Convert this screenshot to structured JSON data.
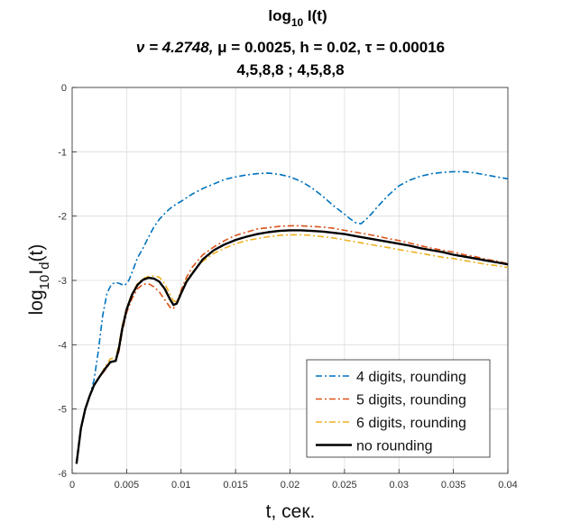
{
  "colors": {
    "s4": "#0072BD",
    "s5": "#D95319",
    "s6": "#EDB120",
    "s0": "#000000",
    "grid": "#dcdcdc",
    "axis": "#262626"
  },
  "chart_data": {
    "type": "line",
    "title_main": "log",
    "title_sub": "10",
    "title_arg": " I(t)",
    "subtitle_prefix": "ν = 4.2748, ",
    "subtitle_mu": "μ = 0.0025, h = 0.02, ",
    "subtitle_tau": "τ = 0.00016",
    "subtitle2": "4,5,8,8 ; 4,5,8,8",
    "xlabel": "t, сек.",
    "ylabel_main": "log",
    "ylabel_sub1": "10",
    "ylabel_mid": "I",
    "ylabel_sub2": "d",
    "ylabel_end": "(t)",
    "xlim": [
      0,
      0.04
    ],
    "ylim": [
      -6,
      0
    ],
    "grid": true,
    "legend_position": "bottom-right",
    "xticks": [
      0,
      0.005,
      0.01,
      0.015,
      0.02,
      0.025,
      0.03,
      0.035,
      0.04
    ],
    "xtick_labels": [
      "0",
      "0.005",
      "0.01",
      "0.015",
      "0.02",
      "0.025",
      "0.03",
      "0.035",
      "0.04"
    ],
    "yticks": [
      0,
      -1,
      -2,
      -3,
      -4,
      -5,
      -6
    ],
    "ytick_labels": [
      "0",
      "-1",
      "-2",
      "-3",
      "-4",
      "-5",
      "-6"
    ],
    "series": [
      {
        "name": "4 digits, rounding",
        "style": "dashdot",
        "color": "#0072BD",
        "x": [
          0.0004,
          0.0008,
          0.0012,
          0.0016,
          0.002,
          0.0024,
          0.0028,
          0.0032,
          0.0036,
          0.004,
          0.0044,
          0.0048,
          0.0052,
          0.0056,
          0.006,
          0.0065,
          0.007,
          0.0075,
          0.008,
          0.0085,
          0.009,
          0.0095,
          0.01,
          0.011,
          0.012,
          0.013,
          0.014,
          0.015,
          0.016,
          0.017,
          0.018,
          0.019,
          0.02,
          0.021,
          0.022,
          0.023,
          0.024,
          0.025,
          0.0255,
          0.026,
          0.0265,
          0.027,
          0.0275,
          0.028,
          0.029,
          0.03,
          0.031,
          0.032,
          0.033,
          0.034,
          0.035,
          0.036,
          0.037,
          0.038,
          0.039,
          0.04
        ],
        "y": [
          -5.85,
          -5.3,
          -5.0,
          -4.8,
          -4.55,
          -4.1,
          -3.55,
          -3.2,
          -3.06,
          -3.03,
          -3.05,
          -3.08,
          -3.0,
          -2.83,
          -2.65,
          -2.5,
          -2.33,
          -2.17,
          -2.05,
          -1.96,
          -1.88,
          -1.82,
          -1.77,
          -1.66,
          -1.57,
          -1.5,
          -1.43,
          -1.39,
          -1.36,
          -1.34,
          -1.33,
          -1.35,
          -1.39,
          -1.46,
          -1.56,
          -1.69,
          -1.84,
          -1.97,
          -2.04,
          -2.1,
          -2.12,
          -2.05,
          -1.96,
          -1.86,
          -1.68,
          -1.53,
          -1.44,
          -1.38,
          -1.34,
          -1.32,
          -1.31,
          -1.31,
          -1.33,
          -1.36,
          -1.39,
          -1.42
        ]
      },
      {
        "name": "5 digits, rounding",
        "style": "dashdot",
        "color": "#D95319",
        "x": [
          0.0004,
          0.0008,
          0.0012,
          0.0016,
          0.002,
          0.0025,
          0.003,
          0.0035,
          0.004,
          0.0043,
          0.0046,
          0.005,
          0.0055,
          0.006,
          0.0065,
          0.007,
          0.0075,
          0.008,
          0.0085,
          0.009,
          0.0093,
          0.0097,
          0.01,
          0.0105,
          0.011,
          0.012,
          0.013,
          0.014,
          0.015,
          0.016,
          0.017,
          0.018,
          0.019,
          0.02,
          0.021,
          0.022,
          0.023,
          0.024,
          0.025,
          0.026,
          0.027,
          0.028,
          0.029,
          0.03,
          0.031,
          0.032,
          0.033,
          0.034,
          0.035,
          0.036,
          0.037,
          0.038,
          0.039,
          0.04
        ],
        "y": [
          -5.85,
          -5.3,
          -5.0,
          -4.8,
          -4.63,
          -4.5,
          -4.4,
          -4.28,
          -4.25,
          -4.1,
          -3.8,
          -3.5,
          -3.28,
          -3.13,
          -3.06,
          -3.05,
          -3.1,
          -3.18,
          -3.3,
          -3.42,
          -3.44,
          -3.3,
          -3.15,
          -2.95,
          -2.8,
          -2.6,
          -2.48,
          -2.38,
          -2.3,
          -2.25,
          -2.2,
          -2.18,
          -2.16,
          -2.15,
          -2.15,
          -2.16,
          -2.17,
          -2.19,
          -2.22,
          -2.25,
          -2.28,
          -2.31,
          -2.35,
          -2.38,
          -2.42,
          -2.46,
          -2.5,
          -2.53,
          -2.56,
          -2.6,
          -2.63,
          -2.67,
          -2.7,
          -2.74
        ]
      },
      {
        "name": "6 digits, rounding",
        "style": "dashdot",
        "color": "#EDB120",
        "x": [
          0.0004,
          0.0008,
          0.0012,
          0.0016,
          0.002,
          0.0025,
          0.003,
          0.0035,
          0.004,
          0.0043,
          0.0046,
          0.005,
          0.0055,
          0.006,
          0.0065,
          0.007,
          0.0075,
          0.008,
          0.0085,
          0.009,
          0.0093,
          0.0096,
          0.01,
          0.0105,
          0.011,
          0.012,
          0.013,
          0.014,
          0.015,
          0.016,
          0.017,
          0.018,
          0.019,
          0.02,
          0.021,
          0.022,
          0.023,
          0.024,
          0.025,
          0.026,
          0.027,
          0.028,
          0.029,
          0.03,
          0.031,
          0.032,
          0.033,
          0.034,
          0.035,
          0.036,
          0.037,
          0.038,
          0.039,
          0.04
        ],
        "y": [
          -5.85,
          -5.3,
          -5.0,
          -4.8,
          -4.63,
          -4.5,
          -4.35,
          -4.22,
          -4.2,
          -4.0,
          -3.7,
          -3.42,
          -3.2,
          -3.05,
          -2.97,
          -2.94,
          -2.93,
          -2.95,
          -3.05,
          -3.22,
          -3.32,
          -3.33,
          -3.18,
          -3.0,
          -2.88,
          -2.7,
          -2.58,
          -2.5,
          -2.43,
          -2.38,
          -2.35,
          -2.32,
          -2.3,
          -2.29,
          -2.29,
          -2.3,
          -2.32,
          -2.34,
          -2.37,
          -2.4,
          -2.43,
          -2.46,
          -2.49,
          -2.52,
          -2.55,
          -2.58,
          -2.61,
          -2.64,
          -2.66,
          -2.69,
          -2.72,
          -2.75,
          -2.77,
          -2.8
        ]
      },
      {
        "name": "no rounding",
        "style": "solid",
        "color": "#000000",
        "x": [
          0.0004,
          0.0008,
          0.0012,
          0.0016,
          0.002,
          0.0025,
          0.003,
          0.0035,
          0.004,
          0.0043,
          0.0046,
          0.005,
          0.0055,
          0.006,
          0.0065,
          0.007,
          0.0075,
          0.008,
          0.0085,
          0.009,
          0.0093,
          0.0096,
          0.01,
          0.0105,
          0.011,
          0.012,
          0.013,
          0.014,
          0.015,
          0.016,
          0.017,
          0.018,
          0.019,
          0.02,
          0.021,
          0.022,
          0.023,
          0.024,
          0.025,
          0.026,
          0.027,
          0.028,
          0.029,
          0.03,
          0.031,
          0.032,
          0.033,
          0.034,
          0.035,
          0.036,
          0.037,
          0.038,
          0.039,
          0.04
        ],
        "y": [
          -5.85,
          -5.3,
          -5.0,
          -4.8,
          -4.63,
          -4.5,
          -4.38,
          -4.27,
          -4.25,
          -4.05,
          -3.75,
          -3.45,
          -3.22,
          -3.07,
          -2.99,
          -2.96,
          -2.97,
          -3.02,
          -3.13,
          -3.3,
          -3.38,
          -3.36,
          -3.2,
          -3.02,
          -2.9,
          -2.67,
          -2.53,
          -2.44,
          -2.37,
          -2.32,
          -2.28,
          -2.25,
          -2.23,
          -2.22,
          -2.22,
          -2.23,
          -2.24,
          -2.26,
          -2.28,
          -2.31,
          -2.34,
          -2.37,
          -2.4,
          -2.43,
          -2.46,
          -2.5,
          -2.53,
          -2.56,
          -2.6,
          -2.63,
          -2.66,
          -2.69,
          -2.72,
          -2.75
        ]
      }
    ]
  }
}
